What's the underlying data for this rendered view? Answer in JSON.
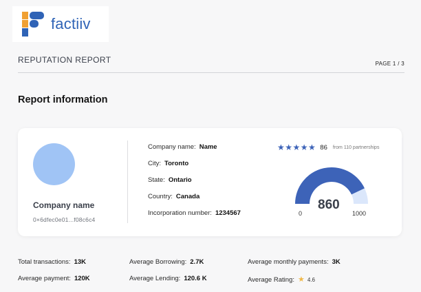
{
  "logo": {
    "text": "factiiv"
  },
  "header": {
    "title": "REPUTATION REPORT",
    "page": "PAGE 1 / 3"
  },
  "section": {
    "title": "Report information"
  },
  "card": {
    "company_heading": "Company name",
    "address": "0×6dfec0e01...f08c6c4",
    "info": [
      {
        "label": "Company name:",
        "value": "Name"
      },
      {
        "label": "City:",
        "value": "Toronto"
      },
      {
        "label": "State:",
        "value": "Ontario"
      },
      {
        "label": "Country:",
        "value": "Canada"
      },
      {
        "label": "Incorporation number:",
        "value": "1234567"
      }
    ],
    "rating": {
      "stars": "★★★★★",
      "value": "86",
      "from": "from 110 partnerships"
    },
    "gauge": {
      "score": "860",
      "min": "0",
      "max": "1000",
      "fill_fraction": 0.86
    }
  },
  "stats": [
    {
      "label": "Total transactions:",
      "value": "13K"
    },
    {
      "label": "Average Borrowing:",
      "value": "2.7K"
    },
    {
      "label": "Average monthly payments:",
      "value": "3K"
    },
    {
      "label": "Average payment:",
      "value": "120K"
    },
    {
      "label": "Average Lending:",
      "value": "120.6 K"
    },
    {
      "label": "Average Rating:",
      "value": "4.6"
    }
  ],
  "colors": {
    "brand": "#2f63b6",
    "accent_orange": "#f0a033",
    "gauge_fill": "#3d63b8",
    "gauge_track": "#dbe7fb"
  }
}
